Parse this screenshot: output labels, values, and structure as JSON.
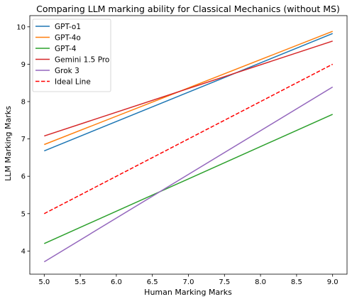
{
  "chart_data": {
    "type": "line",
    "title": "Comparing LLM marking ability for Classical Mechanics (without MS)",
    "xlabel": "Human Marking Marks",
    "ylabel": "LLM Marking Marks",
    "xlim": [
      4.8,
      9.2
    ],
    "ylim": [
      3.38,
      10.3
    ],
    "xticks": [
      5.0,
      5.5,
      6.0,
      6.5,
      7.0,
      7.5,
      8.0,
      8.5,
      9.0
    ],
    "xtick_labels": [
      "5.0",
      "5.5",
      "6.0",
      "6.5",
      "7.0",
      "7.5",
      "8.0",
      "8.5",
      "9.0"
    ],
    "yticks": [
      4,
      5,
      6,
      7,
      8,
      9,
      10
    ],
    "ytick_labels": [
      "4",
      "5",
      "6",
      "7",
      "8",
      "9",
      "10"
    ],
    "grid": false,
    "legend_position": "top-left",
    "series": [
      {
        "name": "GPT-o1",
        "color": "#1f77b4",
        "dashed": false,
        "x": [
          5.0,
          9.0
        ],
        "y": [
          6.68,
          9.82
        ]
      },
      {
        "name": "GPT-4o",
        "color": "#ff7f0e",
        "dashed": false,
        "x": [
          5.0,
          9.0
        ],
        "y": [
          6.85,
          9.88
        ]
      },
      {
        "name": "GPT-4",
        "color": "#2ca02c",
        "dashed": false,
        "x": [
          5.0,
          9.0
        ],
        "y": [
          4.2,
          7.66
        ]
      },
      {
        "name": "Gemini 1.5 Pro",
        "color": "#d62728",
        "dashed": false,
        "x": [
          5.0,
          9.0
        ],
        "y": [
          7.08,
          9.62
        ]
      },
      {
        "name": "Grok 3",
        "color": "#9467bd",
        "dashed": false,
        "x": [
          5.0,
          9.0
        ],
        "y": [
          3.71,
          8.39
        ]
      },
      {
        "name": "Ideal Line",
        "color": "#ff0000",
        "dashed": true,
        "x": [
          5.0,
          9.0
        ],
        "y": [
          5.0,
          9.0
        ]
      }
    ]
  }
}
